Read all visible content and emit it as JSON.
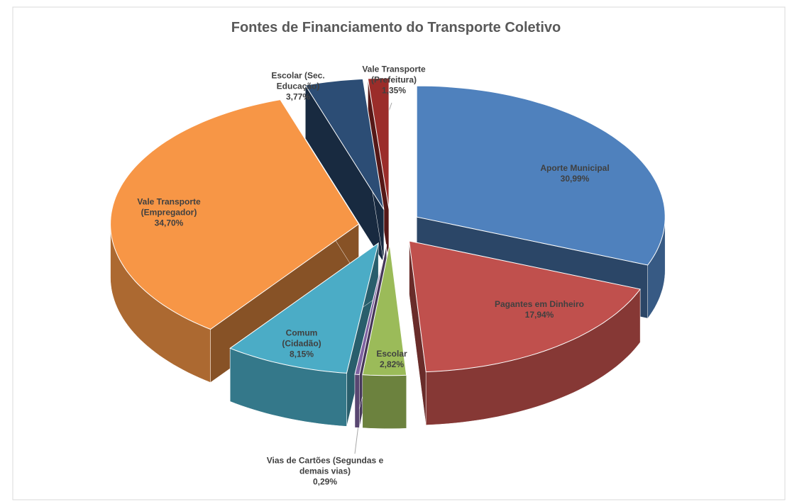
{
  "chart_data": {
    "type": "pie",
    "title": "Fontes de Financiamento do Transporte Coletivo",
    "categories": [
      "Aporte Municipal",
      "Pagantes em Dinheiro",
      "Escolar",
      "Vias de Cartões (Segundas e demais vias)",
      "Comum (Cidadão)",
      "Vale Transporte (Empregador)",
      "Escolar (Sec. Educação)",
      "Vale Transporte (Prefeitura)"
    ],
    "values": [
      30.99,
      17.94,
      2.82,
      0.29,
      8.15,
      34.7,
      3.77,
      1.35
    ],
    "value_labels": [
      "30,99%",
      "17,94%",
      "2,82%",
      "0,29%",
      "8,15%",
      "34,70%",
      "3,77%",
      "1,35%"
    ],
    "colors": [
      "#4f81bd",
      "#c0504d",
      "#9bbb59",
      "#8064a2",
      "#4bacc6",
      "#f79646",
      "#2c4d75",
      "#9b2d2a"
    ]
  }
}
